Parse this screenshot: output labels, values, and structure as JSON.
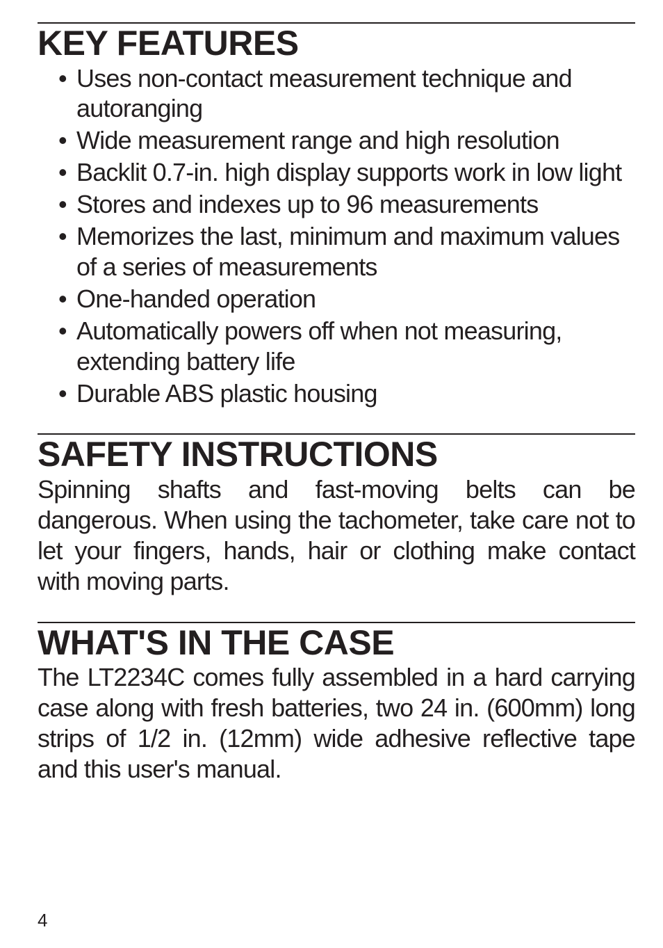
{
  "page": {
    "number": "4",
    "background_color": "#ffffff",
    "text_color": "#231f20",
    "heading_fontsize": 50,
    "body_fontsize": 36,
    "pagenum_fontsize": 26
  },
  "sections": {
    "key_features": {
      "heading": "KEY FEATURES",
      "items": [
        "Uses non-contact measurement technique and autoranging",
        "Wide measurement range and high resolution",
        "Backlit 0.7-in. high display supports work in low light",
        "Stores and indexes up to 96 measurements",
        "Memorizes the last, minimum and maximum values of a series of measurements",
        "One-handed operation",
        "Automatically powers off when not measuring, extending battery life",
        "Durable ABS plastic housing"
      ]
    },
    "safety": {
      "heading": "SAFETY INSTRUCTIONS",
      "body": "Spinning shafts and fast-moving belts can be dangerous. When using the tachometer, take care not to let your fingers, hands, hair or clothing make contact with moving parts."
    },
    "case": {
      "heading": "WHAT'S IN THE CASE",
      "body": "The LT2234C comes fully assembled in a hard carrying case along with fresh batteries, two 24 in. (600mm) long strips of 1/2 in. (12mm) wide adhesive reflective tape and this user's manual."
    }
  }
}
